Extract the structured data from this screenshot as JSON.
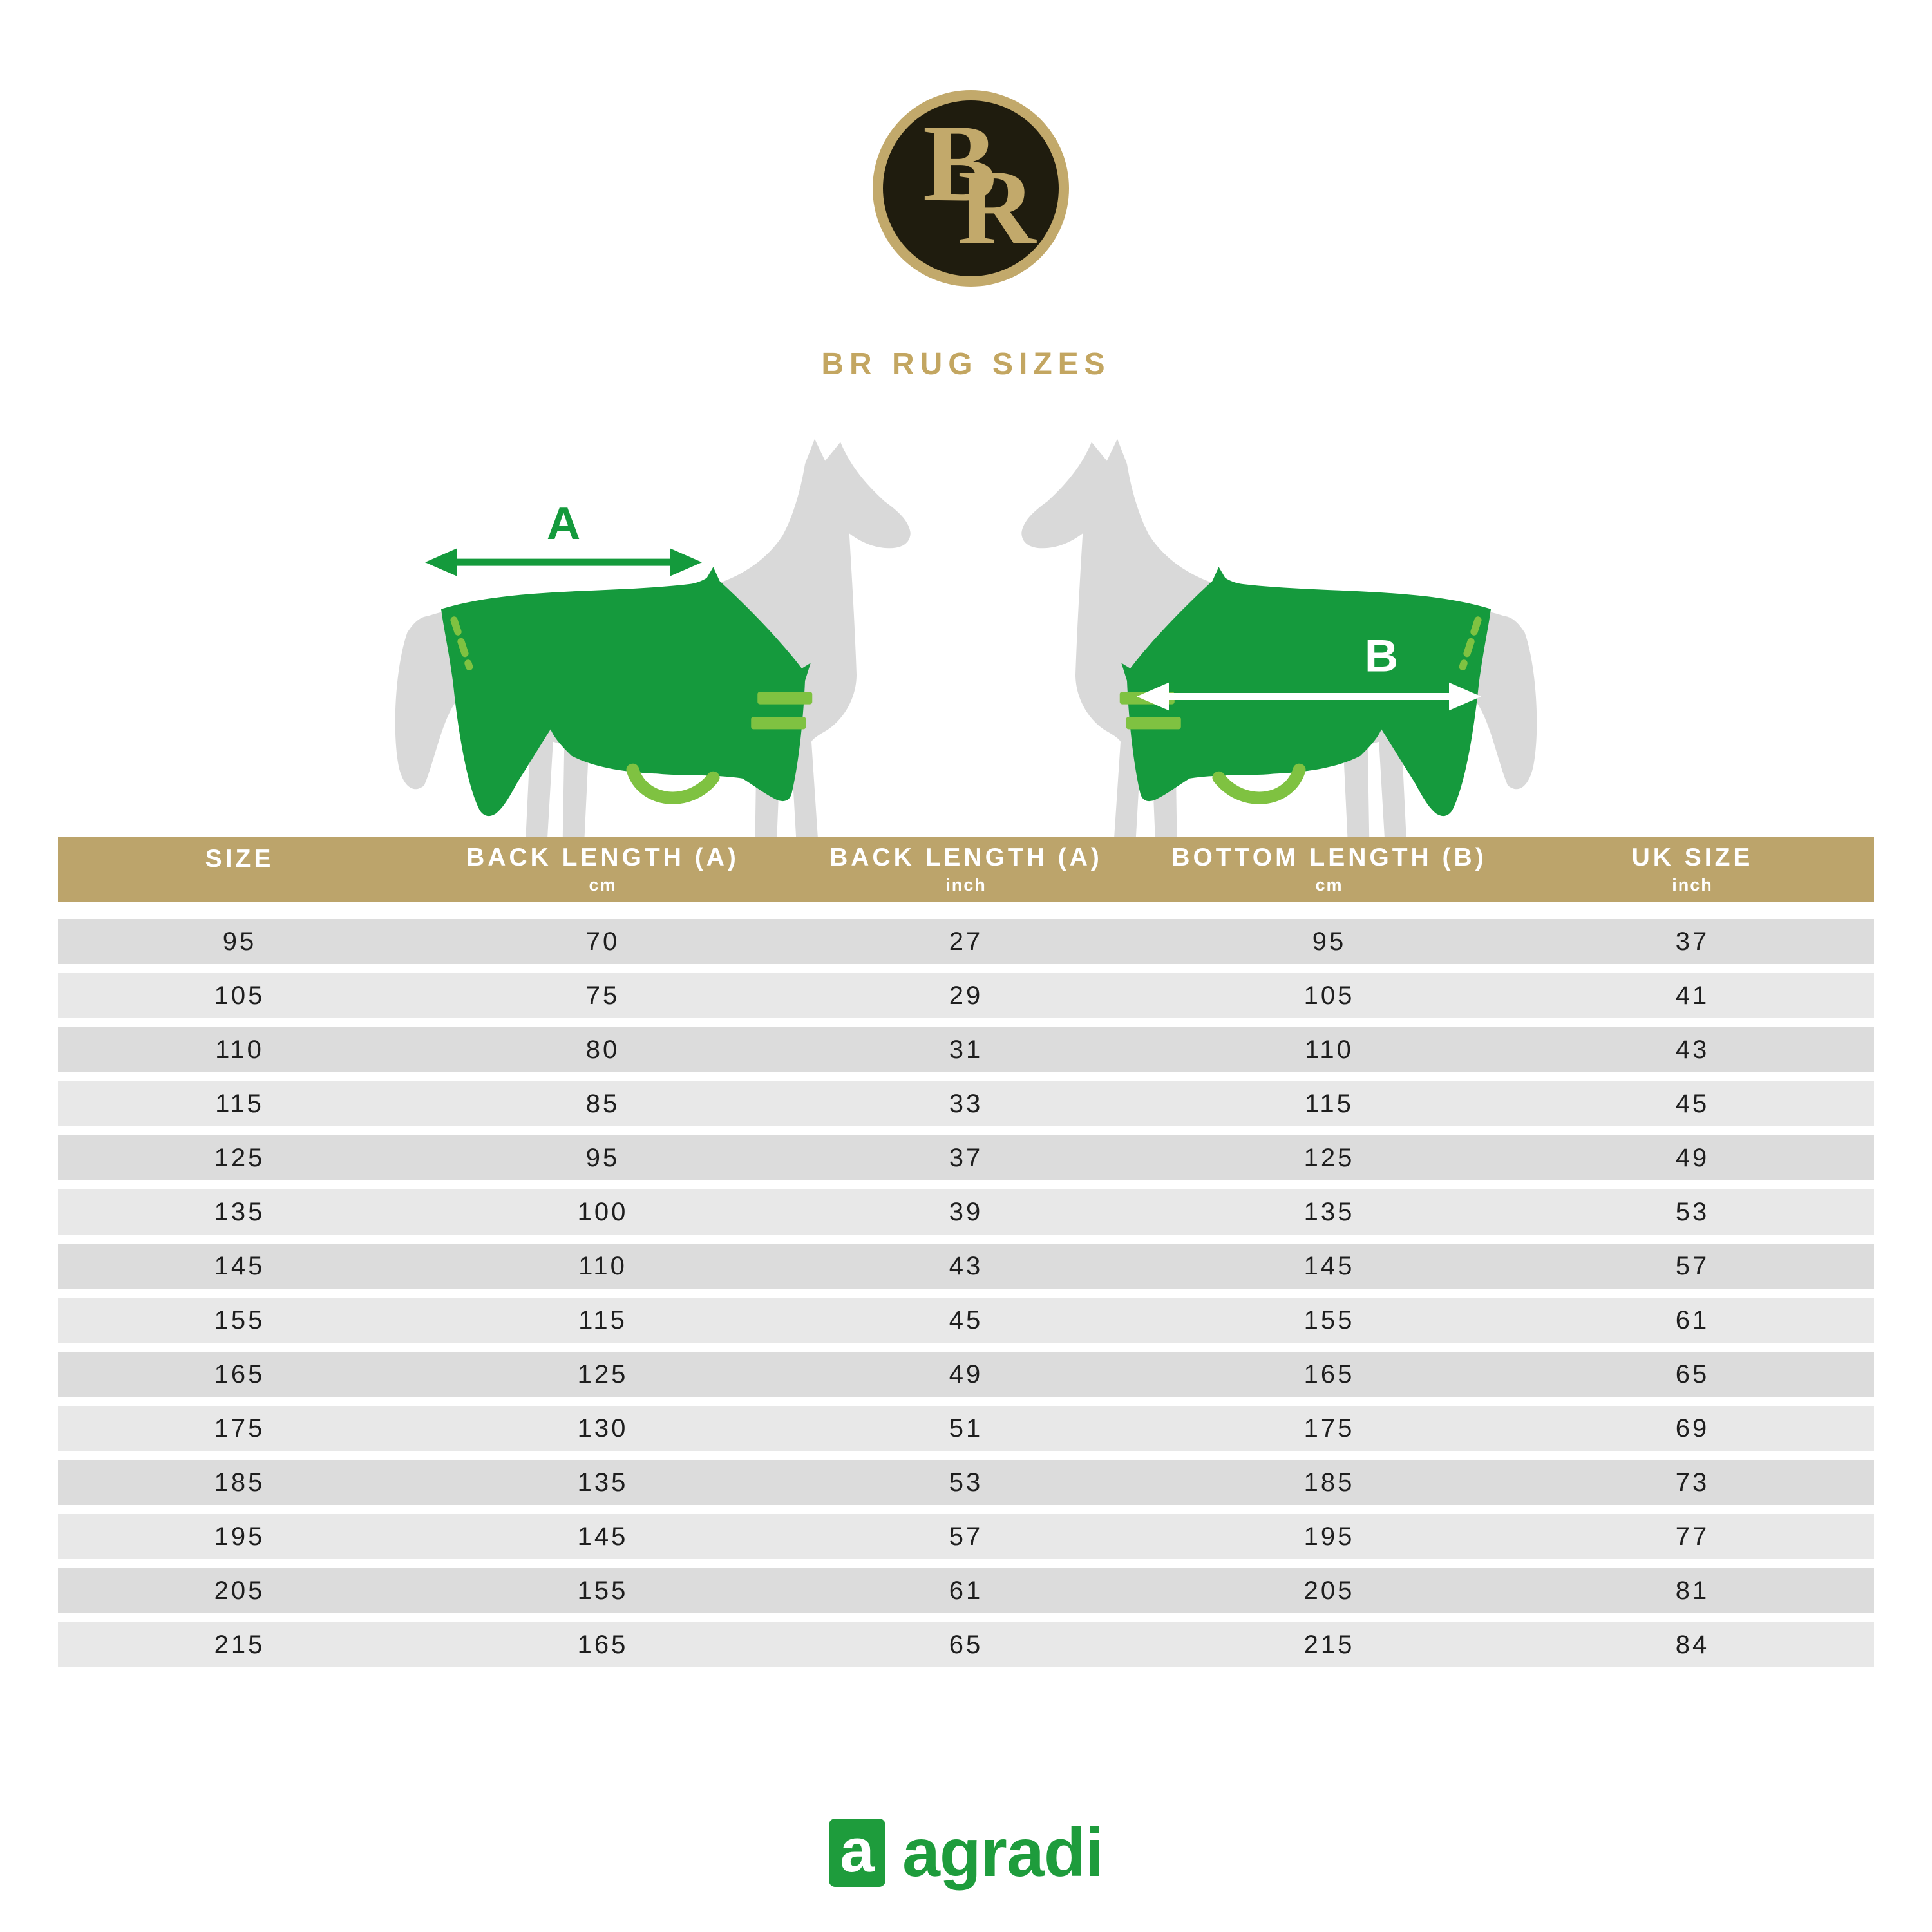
{
  "brand": {
    "monogram_b": "B",
    "monogram_r": "R"
  },
  "title": "BR RUG SIZES",
  "diagram": {
    "measure_a_label": "A",
    "measure_b_label": "B"
  },
  "chart_data": {
    "type": "table",
    "title": "BR RUG SIZES",
    "columns": [
      {
        "label": "SIZE",
        "unit": ""
      },
      {
        "label": "BACK LENGTH (A)",
        "unit": "cm"
      },
      {
        "label": "BACK LENGTH (A)",
        "unit": "inch"
      },
      {
        "label": "BOTTOM LENGTH (B)",
        "unit": "cm"
      },
      {
        "label": "UK SIZE",
        "unit": "inch"
      }
    ],
    "rows": [
      [
        95,
        70,
        27,
        95,
        37
      ],
      [
        105,
        75,
        29,
        105,
        41
      ],
      [
        110,
        80,
        31,
        110,
        43
      ],
      [
        115,
        85,
        33,
        115,
        45
      ],
      [
        125,
        95,
        37,
        125,
        49
      ],
      [
        135,
        100,
        39,
        135,
        53
      ],
      [
        145,
        110,
        43,
        145,
        57
      ],
      [
        155,
        115,
        45,
        155,
        61
      ],
      [
        165,
        125,
        49,
        165,
        65
      ],
      [
        175,
        130,
        51,
        175,
        69
      ],
      [
        185,
        135,
        53,
        185,
        73
      ],
      [
        195,
        145,
        57,
        195,
        77
      ],
      [
        205,
        155,
        61,
        205,
        81
      ],
      [
        215,
        165,
        65,
        215,
        84
      ]
    ],
    "layout": {
      "grid": false,
      "row_striping": "alternating gray",
      "header_background": "#BCA46B"
    }
  },
  "footer": {
    "icon_letter": "a",
    "wordmark": "agradi"
  },
  "colors": {
    "gold_header": "#BCA46B",
    "gold_title": "#C3A661",
    "logo_ring_gold": "#C2A96B",
    "logo_background": "#1F1C0E",
    "rug_green": "#159A3D",
    "strap_light_green": "#7FC241",
    "agradi_green": "#1E9C3C",
    "horse_gray": "#D9D9D9",
    "row_gray_dark": "#DCDCDC",
    "row_gray_light": "#E8E8E8",
    "cell_text": "#1E1E1E",
    "header_text": "#FFFFFF",
    "arrow_a": "#149A3C",
    "arrow_b": "#FFFFFF"
  }
}
